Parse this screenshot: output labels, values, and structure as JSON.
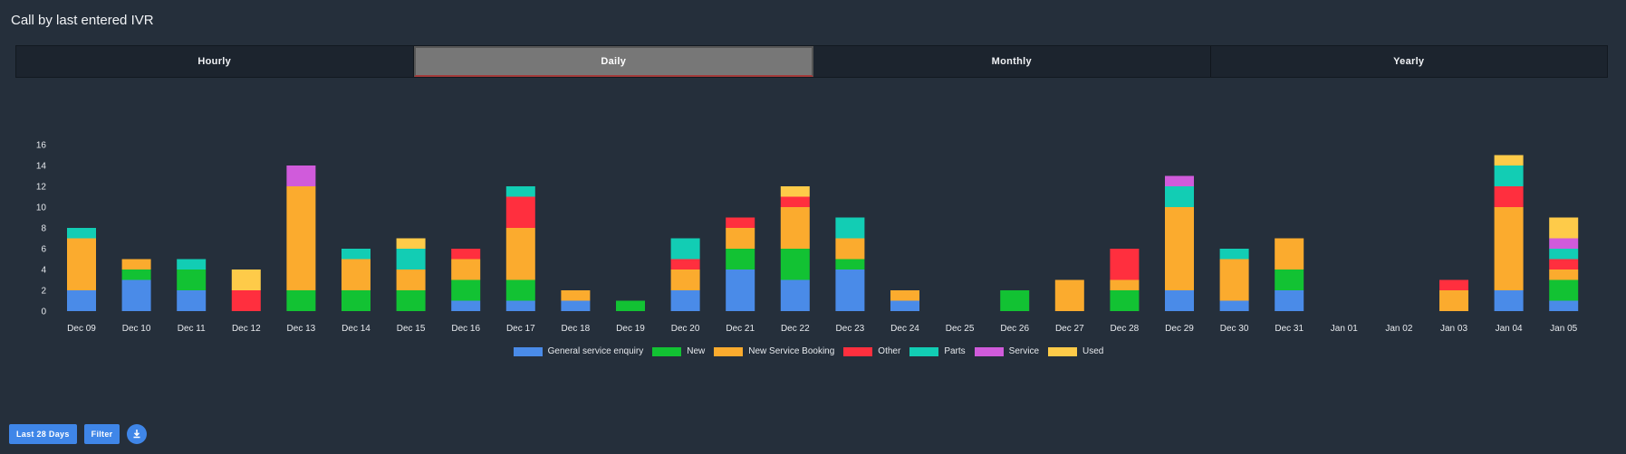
{
  "page": {
    "title": "Call by last entered IVR"
  },
  "tabs": [
    {
      "label": "Hourly",
      "active": false
    },
    {
      "label": "Daily",
      "active": true
    },
    {
      "label": "Monthly",
      "active": false
    },
    {
      "label": "Yearly",
      "active": false
    }
  ],
  "toolbar": {
    "range_label": "Last 28 Days",
    "filter_label": "Filter",
    "download_icon": "download-icon"
  },
  "chart_data": {
    "type": "bar",
    "stacked": true,
    "title": "",
    "xlabel": "",
    "ylabel": "",
    "ylim": [
      0,
      16
    ],
    "yticks": [
      0,
      2,
      4,
      6,
      8,
      10,
      12,
      14,
      16
    ],
    "grid": false,
    "legend_position": "bottom-center",
    "categories": [
      "Dec 09",
      "Dec 10",
      "Dec 11",
      "Dec 12",
      "Dec 13",
      "Dec 14",
      "Dec 15",
      "Dec 16",
      "Dec 17",
      "Dec 18",
      "Dec 19",
      "Dec 20",
      "Dec 21",
      "Dec 22",
      "Dec 23",
      "Dec 24",
      "Dec 25",
      "Dec 26",
      "Dec 27",
      "Dec 28",
      "Dec 29",
      "Dec 30",
      "Dec 31",
      "Jan 01",
      "Jan 02",
      "Jan 03",
      "Jan 04",
      "Jan 05"
    ],
    "series": [
      {
        "name": "General service enquiry",
        "color": "#4a8be8",
        "values": [
          2,
          3,
          2,
          0,
          0,
          0,
          0,
          1,
          1,
          1,
          0,
          2,
          4,
          3,
          4,
          1,
          0,
          0,
          0,
          0,
          2,
          1,
          2,
          0,
          0,
          0,
          2,
          1
        ]
      },
      {
        "name": "New",
        "color": "#12c233",
        "values": [
          0,
          1,
          2,
          0,
          2,
          2,
          2,
          2,
          2,
          0,
          1,
          0,
          2,
          3,
          1,
          0,
          0,
          2,
          0,
          2,
          0,
          0,
          2,
          0,
          0,
          0,
          0,
          2
        ]
      },
      {
        "name": "New Service Booking",
        "color": "#fbab2e",
        "values": [
          5,
          1,
          0,
          0,
          10,
          3,
          2,
          2,
          5,
          1,
          0,
          2,
          2,
          4,
          2,
          1,
          0,
          0,
          3,
          1,
          8,
          4,
          3,
          0,
          0,
          2,
          8,
          1
        ]
      },
      {
        "name": "Other",
        "color": "#ff2f3e",
        "values": [
          0,
          0,
          0,
          2,
          0,
          0,
          0,
          1,
          3,
          0,
          0,
          1,
          1,
          1,
          0,
          0,
          0,
          0,
          0,
          3,
          0,
          0,
          0,
          0,
          0,
          1,
          2,
          1
        ]
      },
      {
        "name": "Parts",
        "color": "#12cdb4",
        "values": [
          1,
          0,
          1,
          0,
          0,
          1,
          2,
          0,
          1,
          0,
          0,
          2,
          0,
          0,
          2,
          0,
          0,
          0,
          0,
          0,
          2,
          1,
          0,
          0,
          0,
          0,
          2,
          1
        ]
      },
      {
        "name": "Service",
        "color": "#d05bdb",
        "values": [
          0,
          0,
          0,
          0,
          2,
          0,
          0,
          0,
          0,
          0,
          0,
          0,
          0,
          0,
          0,
          0,
          0,
          0,
          0,
          0,
          1,
          0,
          0,
          0,
          0,
          0,
          0,
          1
        ]
      },
      {
        "name": "Used",
        "color": "#fecb49",
        "values": [
          0,
          0,
          0,
          2,
          0,
          0,
          1,
          0,
          0,
          0,
          0,
          0,
          0,
          1,
          0,
          0,
          0,
          0,
          0,
          0,
          0,
          0,
          0,
          0,
          0,
          0,
          1,
          2
        ]
      }
    ]
  }
}
